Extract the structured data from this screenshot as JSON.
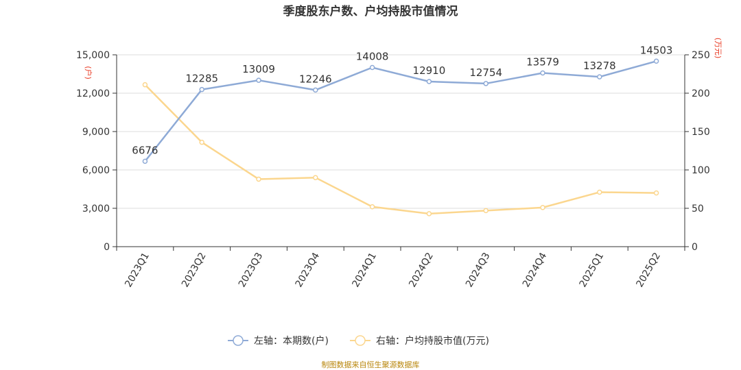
{
  "title": "季度股东户数、户均持股市值情况",
  "source": "制图数据来自恒生聚源数据库",
  "chart_data": {
    "type": "line",
    "categories": [
      "2023Q1",
      "2023Q2",
      "2023Q3",
      "2023Q4",
      "2024Q1",
      "2024Q2",
      "2024Q3",
      "2024Q4",
      "2025Q1",
      "2025Q2"
    ],
    "series": [
      {
        "name": "左轴：本期数(户)",
        "axis": "left",
        "color": "#8eaad6",
        "values": [
          6676,
          12285,
          13009,
          12246,
          14008,
          12910,
          12754,
          13579,
          13278,
          14503
        ],
        "labels": [
          "6676",
          "12285",
          "13009",
          "12246",
          "14008",
          "12910",
          "12754",
          "13579",
          "13278",
          "14503"
        ]
      },
      {
        "name": "右轴：户均持股市值(万元)",
        "axis": "right",
        "color": "#fbd68e",
        "values": [
          211,
          136,
          88,
          90,
          52,
          43,
          47,
          51,
          71,
          70
        ]
      }
    ],
    "y_left": {
      "unit": "(户)",
      "ylim": [
        0,
        15000
      ],
      "ticks": [
        "0",
        "3,000",
        "6,000",
        "9,000",
        "12,000",
        "15,000"
      ],
      "tick_values": [
        0,
        3000,
        6000,
        9000,
        12000,
        15000
      ]
    },
    "y_right": {
      "unit": "(万元)",
      "ylim": [
        0,
        250
      ],
      "ticks": [
        "0",
        "50",
        "100",
        "150",
        "200",
        "250"
      ],
      "tick_values": [
        0,
        50,
        100,
        150,
        200,
        250
      ]
    },
    "grid": true,
    "legend_position": "bottom"
  }
}
